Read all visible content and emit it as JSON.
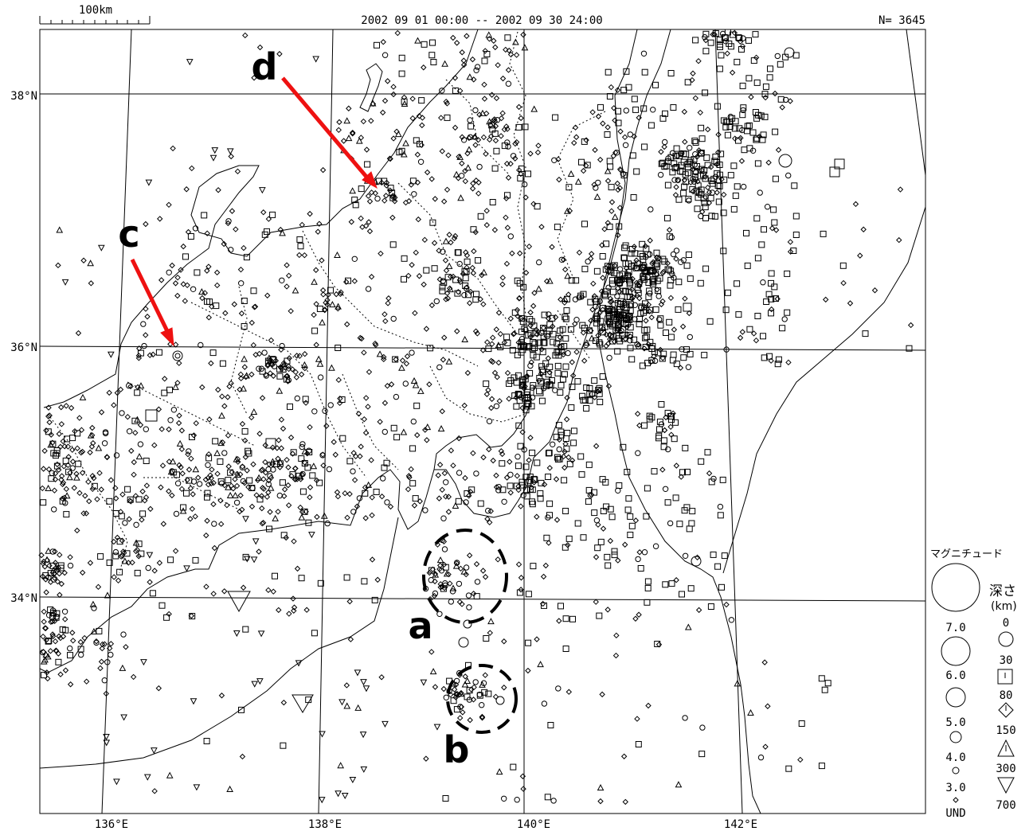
{
  "header": {
    "period": "2002 09 01 00:00 -- 2002 09 30 24:00",
    "count": "N= 3645",
    "scale_label": "100km"
  },
  "axes": {
    "lat_labels": [
      "38°N",
      "36°N",
      "34°N"
    ],
    "lon_labels": [
      "136°E",
      "138°E",
      "140°E",
      "142°E"
    ]
  },
  "annotations": {
    "a": "a",
    "b": "b",
    "c": "c",
    "d": "d",
    "arrow_color": "#ee1111"
  },
  "legend": {
    "magnitude_title": "マグニチュード",
    "depth_title": "深さ",
    "depth_unit": "(km)",
    "magnitudes": [
      "7.0",
      "6.0",
      "5.0",
      "4.0",
      "3.0",
      "UND"
    ],
    "depths": [
      "0",
      "30",
      "80",
      "150",
      "300",
      "700"
    ]
  }
}
